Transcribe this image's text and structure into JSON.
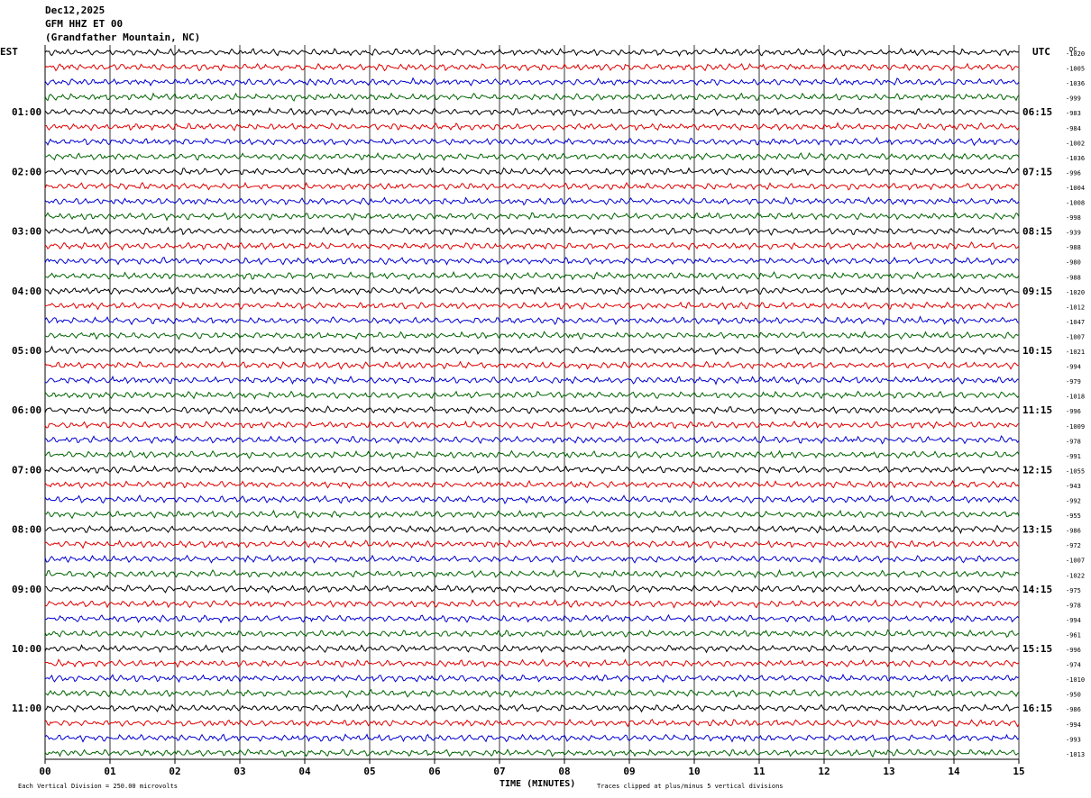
{
  "header": {
    "date": "Dec12,2025",
    "station": "GFM HHZ ET 00",
    "location": "(Grandfather Mountain, NC)"
  },
  "left_timezone": "EST",
  "right_timezone": "UTC",
  "dc_label": "DC",
  "footer": {
    "scale_note": "Each Vertical Division =  250.00 microvolts",
    "clip_note": "Traces clipped at plus/minus 5 vertical divisions"
  },
  "chart_data": {
    "type": "line",
    "title": "GFM HHZ ET 00",
    "xlabel": "TIME (MINUTES)",
    "ylabel": "",
    "x_ticks": [
      "00",
      "01",
      "02",
      "03",
      "04",
      "05",
      "06",
      "07",
      "08",
      "09",
      "10",
      "11",
      "12",
      "13",
      "14",
      "15"
    ],
    "xlim": [
      0,
      15
    ],
    "rows_per_hour": 4,
    "row_colors": [
      "#000000",
      "#e00000",
      "#0000d0",
      "#006400"
    ],
    "left_hour_labels": [
      "01:00",
      "02:00",
      "03:00",
      "04:00",
      "05:00",
      "06:00",
      "07:00",
      "08:00",
      "09:00",
      "10:00",
      "11:00"
    ],
    "right_hour_labels": [
      "06:15",
      "07:15",
      "08:15",
      "09:15",
      "10:15",
      "11:15",
      "12:15",
      "13:15",
      "14:15",
      "15:15",
      "16:15"
    ],
    "dc_offsets": [
      "-1020",
      "-1005",
      "-1036",
      "-999",
      "-983",
      "-984",
      "-1002",
      "-1036",
      "-996",
      "-1004",
      "-1008",
      "-998",
      "-939",
      "-988",
      "-980",
      "-988",
      "-1020",
      "-1012",
      "-1047",
      "-1007",
      "-1021",
      "-994",
      "-979",
      "-1018",
      "-996",
      "-1009",
      "-978",
      "-991",
      "-1055",
      "-943",
      "-992",
      "-955",
      "-986",
      "-972",
      "-1007",
      "-1022",
      "-975",
      "-978",
      "-994",
      "-961",
      "-996",
      "-974",
      "-1010",
      "-950",
      "-986",
      "-994",
      "-993",
      "-1013"
    ],
    "grid": "vertical"
  }
}
